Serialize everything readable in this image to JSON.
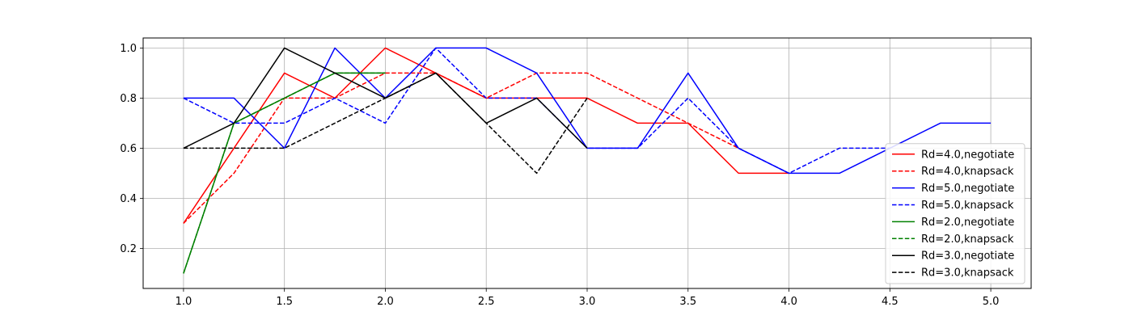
{
  "chart_data": {
    "type": "line",
    "title": "",
    "xlabel": "",
    "ylabel": "",
    "xlim": [
      0.8,
      5.2
    ],
    "ylim": [
      0.04,
      1.04
    ],
    "xticks": [
      1.0,
      1.5,
      2.0,
      2.5,
      3.0,
      3.5,
      4.0,
      4.5,
      5.0
    ],
    "yticks": [
      0.2,
      0.4,
      0.6,
      0.8,
      1.0
    ],
    "xtick_labels": [
      "1.0",
      "1.5",
      "2.0",
      "2.5",
      "3.0",
      "3.5",
      "4.0",
      "4.5",
      "5.0"
    ],
    "ytick_labels": [
      "0.2",
      "0.4",
      "0.6",
      "0.8",
      "1.0"
    ],
    "grid": true,
    "legend_position": "lower-right",
    "series": [
      {
        "name": "Rd=4.0,negotiate",
        "color": "#ff0000",
        "dashed": false,
        "x": [
          1.0,
          1.5,
          1.75,
          2.0,
          2.25,
          2.5,
          2.75,
          3.0,
          3.25,
          3.5,
          3.75,
          4.0
        ],
        "y": [
          0.3,
          0.9,
          0.8,
          1.0,
          0.9,
          0.8,
          0.8,
          0.8,
          0.7,
          0.7,
          0.5,
          0.5
        ]
      },
      {
        "name": "Rd=4.0,knapsack",
        "color": "#ff0000",
        "dashed": true,
        "x": [
          1.0,
          1.25,
          1.5,
          1.75,
          2.0,
          2.25,
          2.5,
          2.75,
          3.0,
          3.25,
          3.5,
          3.75
        ],
        "y": [
          0.3,
          0.5,
          0.8,
          0.8,
          0.9,
          0.9,
          0.8,
          0.9,
          0.9,
          0.8,
          0.7,
          0.6
        ]
      },
      {
        "name": "Rd=5.0,negotiate",
        "color": "#0000ff",
        "dashed": false,
        "x": [
          1.0,
          1.25,
          1.5,
          1.75,
          2.0,
          2.25,
          2.5,
          2.75,
          3.0,
          3.25,
          3.5,
          3.75,
          4.0,
          4.25,
          4.5,
          4.75,
          5.0
        ],
        "y": [
          0.8,
          0.8,
          0.6,
          1.0,
          0.8,
          1.0,
          1.0,
          0.9,
          0.6,
          0.6,
          0.9,
          0.6,
          0.5,
          0.5,
          0.6,
          0.7,
          0.7
        ]
      },
      {
        "name": "Rd=5.0,knapsack",
        "color": "#0000ff",
        "dashed": true,
        "x": [
          1.0,
          1.25,
          1.5,
          1.75,
          2.0,
          2.25,
          2.5,
          2.75,
          3.0,
          3.25,
          3.5,
          3.75,
          4.0,
          4.25,
          4.5
        ],
        "y": [
          0.8,
          0.7,
          0.7,
          0.8,
          0.7,
          1.0,
          0.8,
          0.8,
          0.6,
          0.6,
          0.8,
          0.6,
          0.5,
          0.6,
          0.6
        ]
      },
      {
        "name": "Rd=2.0,negotiate",
        "color": "#008000",
        "dashed": false,
        "x": [
          1.0,
          1.25,
          1.5,
          1.75,
          2.0
        ],
        "y": [
          0.1,
          0.7,
          0.8,
          0.9,
          0.9
        ]
      },
      {
        "name": "Rd=2.0,knapsack",
        "color": "#008000",
        "dashed": true,
        "x": [
          1.0,
          1.25,
          1.5,
          1.75,
          2.0
        ],
        "y": [
          0.1,
          0.7,
          0.8,
          0.9,
          0.9
        ]
      },
      {
        "name": "Rd=3.0,negotiate",
        "color": "#000000",
        "dashed": false,
        "x": [
          1.0,
          1.25,
          1.5,
          1.75,
          2.0,
          2.25,
          2.5,
          2.75,
          3.0
        ],
        "y": [
          0.6,
          0.7,
          1.0,
          0.9,
          0.8,
          0.9,
          0.7,
          0.8,
          0.6
        ]
      },
      {
        "name": "Rd=3.0,knapsack",
        "color": "#000000",
        "dashed": true,
        "x": [
          1.0,
          1.25,
          1.5,
          1.75,
          2.0,
          2.25,
          2.5,
          2.75,
          3.0
        ],
        "y": [
          0.6,
          0.6,
          0.6,
          0.7,
          0.8,
          0.9,
          0.7,
          0.5,
          0.8
        ]
      }
    ]
  }
}
